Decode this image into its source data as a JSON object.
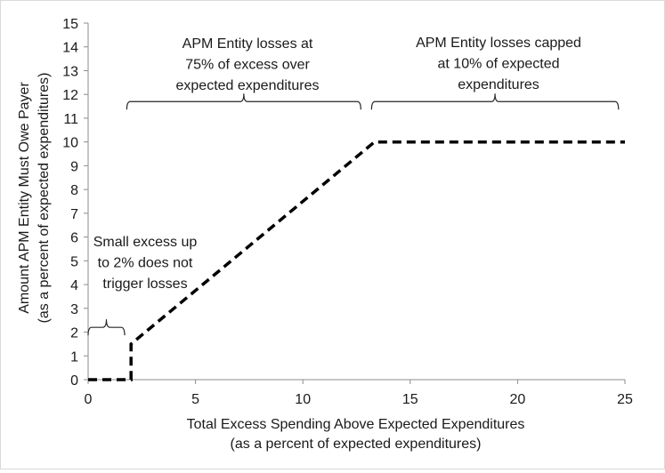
{
  "chart_data": {
    "type": "line",
    "xlabel_lines": [
      "Total Excess Spending Above Expected Expenditures",
      "(as a percent of expected expenditures)"
    ],
    "ylabel_lines": [
      "Amount APM Entity Must Owe Payer",
      "(as a percent of expected expenditures)"
    ],
    "xlim": [
      0,
      25
    ],
    "ylim": [
      0,
      15
    ],
    "x_ticks": [
      0,
      5,
      10,
      15,
      20,
      25
    ],
    "y_ticks": [
      0,
      1,
      2,
      3,
      4,
      5,
      6,
      7,
      8,
      9,
      10,
      11,
      12,
      13,
      14,
      15
    ],
    "grid": false,
    "legend": "none",
    "series": [
      {
        "line_style": "dashed",
        "color": "#000000",
        "x": [
          0,
          2,
          2,
          13.333,
          25
        ],
        "y": [
          0,
          0,
          1.5,
          10,
          10
        ]
      }
    ],
    "annotations": [
      {
        "id": "small-excess",
        "lines": [
          "Small excess up",
          "to 2% does not",
          "trigger losses"
        ],
        "brace_range": [
          0,
          1.7
        ],
        "brace_y": 2.2
      },
      {
        "id": "losses-75",
        "lines": [
          "APM Entity losses at",
          "75% of excess over",
          "expected expenditures"
        ],
        "brace_range": [
          1.8,
          12.7
        ],
        "brace_y": 11.7
      },
      {
        "id": "losses-capped",
        "lines": [
          "APM Entity losses capped",
          "at 10% of expected",
          "expenditures"
        ],
        "brace_range": [
          13.2,
          24.7
        ],
        "brace_y": 11.7
      }
    ]
  }
}
